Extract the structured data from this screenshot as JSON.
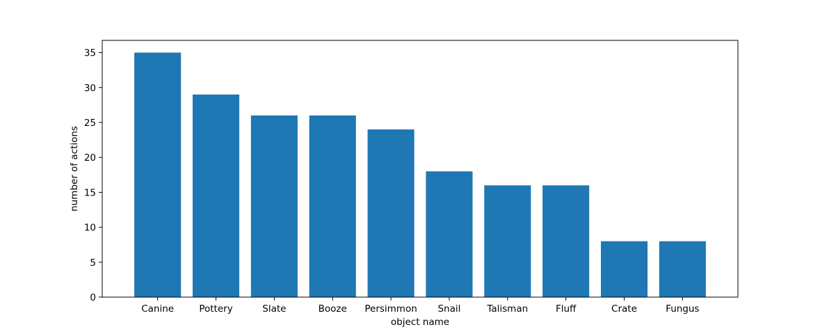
{
  "chart_data": {
    "type": "bar",
    "categories": [
      "Canine",
      "Pottery",
      "Slate",
      "Booze",
      "Persimmon",
      "Snail",
      "Talisman",
      "Fluff",
      "Crate",
      "Fungus"
    ],
    "values": [
      35,
      29,
      26,
      26,
      24,
      18,
      16,
      16,
      8,
      8
    ],
    "title": "",
    "xlabel": "object name",
    "ylabel": "number of actions",
    "ylim": [
      0,
      36.75
    ],
    "yticks": [
      0,
      5,
      10,
      15,
      20,
      25,
      30,
      35
    ],
    "grid": false,
    "legend": "none",
    "bar_color": "#1f77b4"
  }
}
